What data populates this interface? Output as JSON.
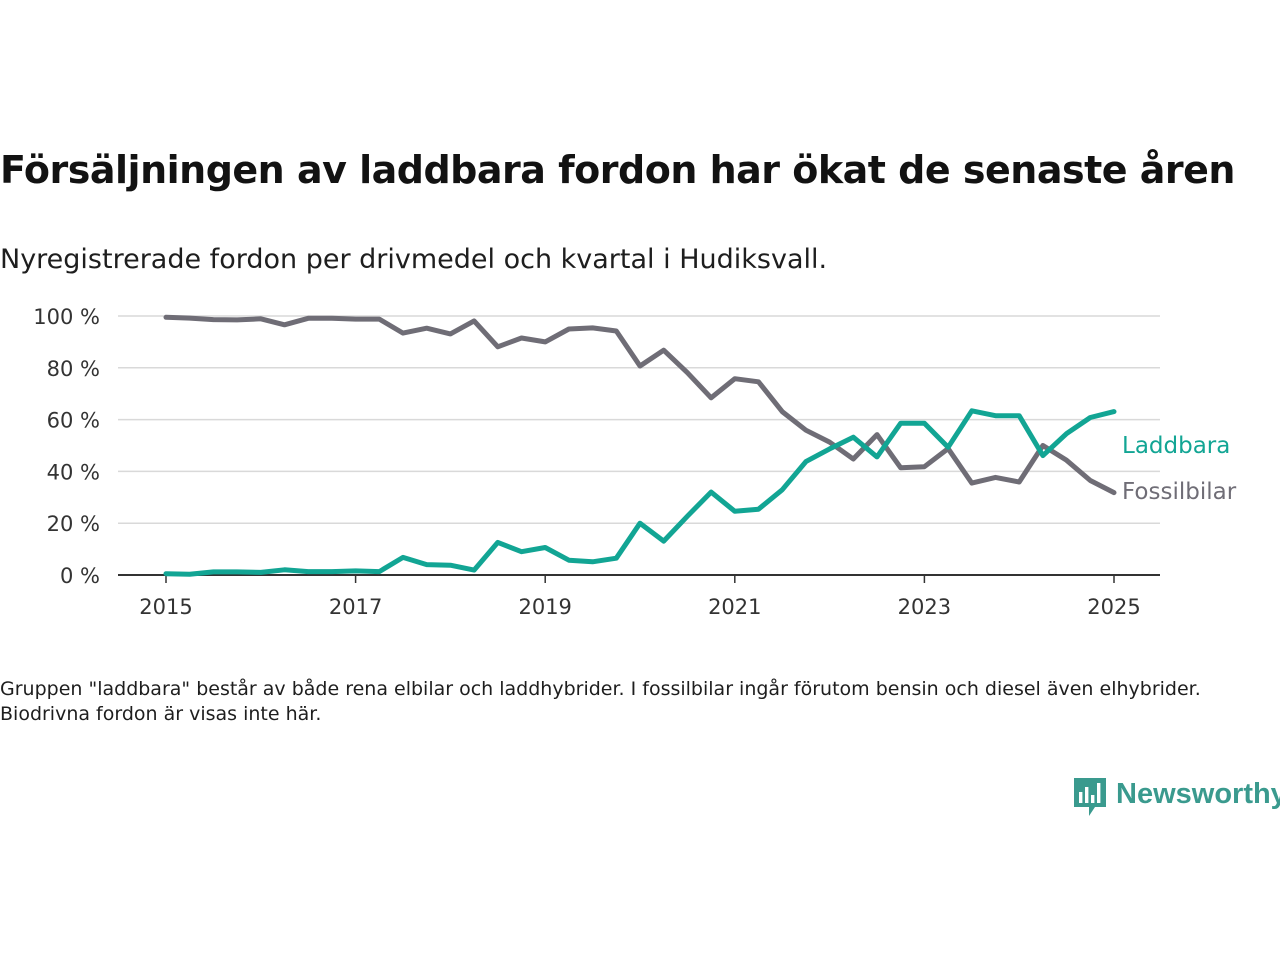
{
  "title": "Försäljningen av laddbara fordon har ökat de senaste åren",
  "subtitle": "Nyregistrerade fordon per drivmedel och kvartal i Hudiksvall.",
  "note": "Gruppen \"laddbara\" består av både rena elbilar och laddhybrider. I fossilbilar ingår förutom bensin och diesel även elhybrider. Biodrivna fordon är visas inte här.",
  "brand": {
    "name": "Newsworthy",
    "icon": "newsworthy-logo-icon"
  },
  "colors": {
    "laddbara": "#12a594",
    "fossilbilar": "#6f6d76",
    "grid": "#d9d9d9",
    "axis": "#333333",
    "brand": "#3a9a8e"
  },
  "chart_data": {
    "type": "line",
    "x": [
      "2015-Q1",
      "2015-Q2",
      "2015-Q3",
      "2015-Q4",
      "2016-Q1",
      "2016-Q2",
      "2016-Q3",
      "2016-Q4",
      "2017-Q1",
      "2017-Q2",
      "2017-Q3",
      "2017-Q4",
      "2018-Q1",
      "2018-Q2",
      "2018-Q3",
      "2018-Q4",
      "2019-Q1",
      "2019-Q2",
      "2019-Q3",
      "2019-Q4",
      "2020-Q1",
      "2020-Q2",
      "2020-Q3",
      "2020-Q4",
      "2021-Q1",
      "2021-Q2",
      "2021-Q3",
      "2021-Q4",
      "2022-Q1",
      "2022-Q2",
      "2022-Q3",
      "2022-Q4",
      "2023-Q1",
      "2023-Q2",
      "2023-Q3",
      "2023-Q4",
      "2024-Q1",
      "2024-Q2",
      "2024-Q3",
      "2024-Q4",
      "2025-Q1"
    ],
    "series": [
      {
        "name": "Laddbara",
        "color": "#12a594",
        "values": [
          0.5,
          0.3,
          1.2,
          1.2,
          1.0,
          2.0,
          1.3,
          1.3,
          1.6,
          1.3,
          6.8,
          4.0,
          3.8,
          1.9,
          12.6,
          9.0,
          10.6,
          5.7,
          5.1,
          6.5,
          20.0,
          13.1,
          22.7,
          32.0,
          24.6,
          25.4,
          32.9,
          43.8,
          48.7,
          53.2,
          45.6,
          58.6,
          58.6,
          49.3,
          63.4,
          61.5,
          61.5,
          46.1,
          54.6,
          60.8,
          63.1
        ]
      },
      {
        "name": "Fossilbilar",
        "color": "#6f6d76",
        "values": [
          99.5,
          99.2,
          98.6,
          98.5,
          98.9,
          96.6,
          99.1,
          99.1,
          98.8,
          98.8,
          93.4,
          95.3,
          93.1,
          98.1,
          88.1,
          91.5,
          90.0,
          95.0,
          95.4,
          94.2,
          80.7,
          86.8,
          78.1,
          68.4,
          75.8,
          74.6,
          63.1,
          55.9,
          51.3,
          44.8,
          54.2,
          41.4,
          41.8,
          48.8,
          35.5,
          37.7,
          35.9,
          50.0,
          44.3,
          36.5,
          31.8
        ]
      }
    ],
    "x_ticks": [
      "2015",
      "2017",
      "2019",
      "2021",
      "2023",
      "2025"
    ],
    "y_ticks": [
      "0 %",
      "20 %",
      "40 %",
      "60 %",
      "80 %",
      "100 %"
    ],
    "ylim": [
      0,
      100
    ],
    "xlim": [
      "2015-Q1",
      "2025-Q1"
    ],
    "grid": "horizontal",
    "legend": "direct labels at line ends (right)"
  }
}
